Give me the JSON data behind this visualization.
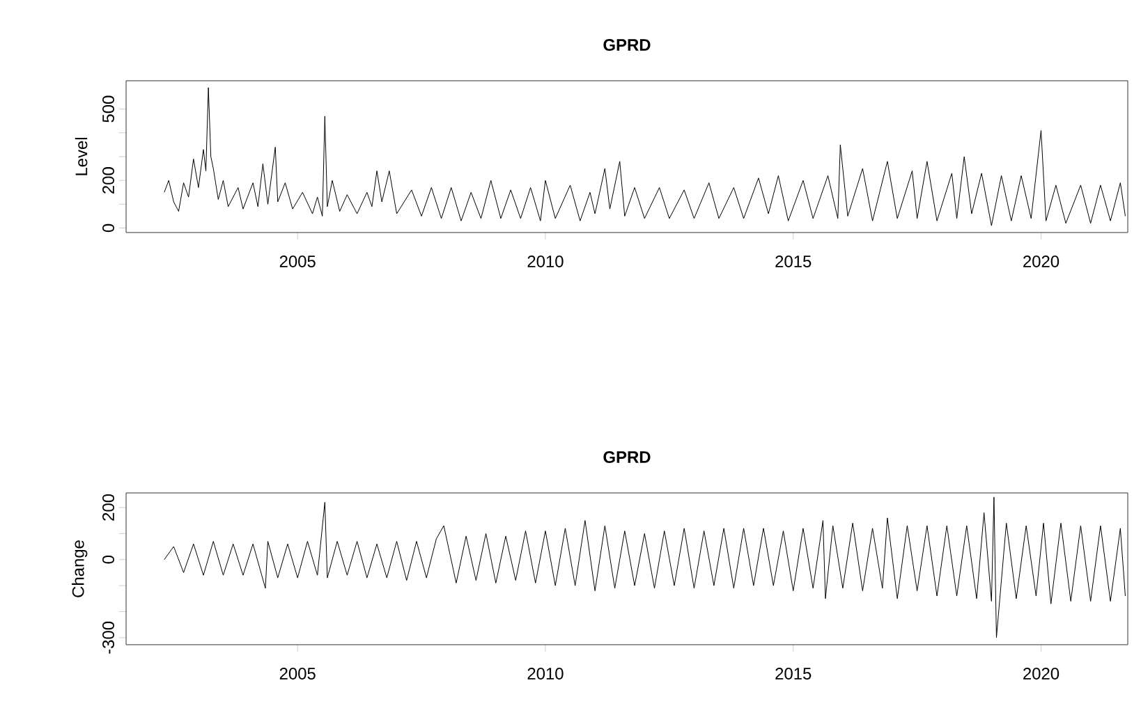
{
  "chart_data": [
    {
      "type": "line",
      "title": "GPRD",
      "ylabel": "Level",
      "xlim": [
        2001.54,
        2021.75
      ],
      "xticks": [
        2005,
        2010,
        2015,
        2020
      ],
      "ylim": [
        -19,
        619
      ],
      "yticks": [
        0,
        {
          "value": 100,
          "label": null
        },
        200,
        {
          "value": 300,
          "label": null
        },
        {
          "value": 400,
          "label": null
        },
        500
      ],
      "series": [
        {
          "color": "#000000",
          "x": [
            2002.31,
            2002.4,
            2002.5,
            2002.6,
            2002.7,
            2002.8,
            2002.9,
            2003.0,
            2003.1,
            2003.15,
            2003.2,
            2003.25,
            2003.3,
            2003.4,
            2003.5,
            2003.6,
            2003.8,
            2003.9,
            2004.1,
            2004.2,
            2004.3,
            2004.4,
            2004.55,
            2004.6,
            2004.75,
            2004.9,
            2005.1,
            2005.3,
            2005.4,
            2005.5,
            2005.55,
            2005.6,
            2005.7,
            2005.85,
            2006.0,
            2006.2,
            2006.4,
            2006.5,
            2006.6,
            2006.7,
            2006.85,
            2007.0,
            2007.3,
            2007.5,
            2007.7,
            2007.9,
            2008.1,
            2008.3,
            2008.5,
            2008.7,
            2008.9,
            2009.1,
            2009.3,
            2009.5,
            2009.7,
            2009.9,
            2010.0,
            2010.2,
            2010.5,
            2010.7,
            2010.9,
            2011.0,
            2011.2,
            2011.3,
            2011.5,
            2011.6,
            2011.8,
            2012.0,
            2012.3,
            2012.5,
            2012.8,
            2013.0,
            2013.3,
            2013.5,
            2013.8,
            2014.0,
            2014.3,
            2014.5,
            2014.7,
            2014.9,
            2015.2,
            2015.4,
            2015.7,
            2015.9,
            2015.95,
            2016.1,
            2016.4,
            2016.6,
            2016.9,
            2017.1,
            2017.4,
            2017.5,
            2017.7,
            2017.9,
            2018.2,
            2018.3,
            2018.45,
            2018.6,
            2018.8,
            2019.0,
            2019.2,
            2019.4,
            2019.6,
            2019.8,
            2020.0,
            2020.1,
            2020.3,
            2020.5,
            2020.8,
            2021.0,
            2021.2,
            2021.4,
            2021.6,
            2021.7
          ],
          "values": [
            150,
            200,
            110,
            70,
            190,
            130,
            290,
            170,
            330,
            240,
            590,
            300,
            250,
            120,
            200,
            90,
            170,
            80,
            190,
            90,
            270,
            100,
            340,
            110,
            190,
            80,
            150,
            60,
            130,
            50,
            470,
            90,
            200,
            70,
            140,
            60,
            150,
            90,
            240,
            110,
            240,
            60,
            160,
            50,
            170,
            40,
            170,
            30,
            150,
            40,
            200,
            40,
            160,
            40,
            170,
            30,
            200,
            40,
            180,
            30,
            150,
            60,
            250,
            80,
            280,
            50,
            170,
            40,
            170,
            40,
            160,
            40,
            190,
            40,
            170,
            40,
            210,
            60,
            220,
            30,
            200,
            40,
            220,
            40,
            350,
            50,
            250,
            30,
            280,
            40,
            240,
            40,
            280,
            30,
            230,
            40,
            300,
            60,
            230,
            10,
            220,
            30,
            220,
            40,
            410,
            30,
            180,
            20,
            180,
            20,
            180,
            30,
            190,
            50
          ]
        }
      ]
    },
    {
      "type": "line",
      "title": "GPRD",
      "ylabel": "Change",
      "xlim": [
        2001.54,
        2021.75
      ],
      "xticks": [
        2005,
        2010,
        2015,
        2020
      ],
      "ylim": [
        -327,
        256
      ],
      "yticks": [
        {
          "value": -300,
          "label": "-300"
        },
        {
          "value": -200,
          "label": null
        },
        {
          "value": -100,
          "label": null
        },
        0,
        {
          "value": 100,
          "label": null
        },
        200
      ],
      "series": [
        {
          "color": "#000000",
          "x": [
            2002.31,
            2002.5,
            2002.7,
            2002.9,
            2003.1,
            2003.3,
            2003.5,
            2003.7,
            2003.9,
            2004.1,
            2004.35,
            2004.4,
            2004.6,
            2004.8,
            2005.0,
            2005.2,
            2005.4,
            2005.55,
            2005.6,
            2005.8,
            2006.0,
            2006.2,
            2006.4,
            2006.6,
            2006.8,
            2007.0,
            2007.2,
            2007.4,
            2007.6,
            2007.8,
            2007.95,
            2008.2,
            2008.4,
            2008.6,
            2008.8,
            2009.0,
            2009.2,
            2009.4,
            2009.6,
            2009.8,
            2010.0,
            2010.2,
            2010.4,
            2010.6,
            2010.8,
            2011.0,
            2011.2,
            2011.4,
            2011.6,
            2011.8,
            2012.0,
            2012.2,
            2012.4,
            2012.6,
            2012.8,
            2013.0,
            2013.2,
            2013.4,
            2013.6,
            2013.8,
            2014.0,
            2014.2,
            2014.4,
            2014.6,
            2014.8,
            2015.0,
            2015.2,
            2015.4,
            2015.6,
            2015.65,
            2015.8,
            2016.0,
            2016.2,
            2016.4,
            2016.6,
            2016.8,
            2016.9,
            2017.1,
            2017.3,
            2017.5,
            2017.7,
            2017.9,
            2018.1,
            2018.3,
            2018.5,
            2018.7,
            2018.85,
            2019.0,
            2019.05,
            2019.1,
            2019.3,
            2019.5,
            2019.7,
            2019.9,
            2020.05,
            2020.2,
            2020.4,
            2020.6,
            2020.8,
            2021.0,
            2021.2,
            2021.4,
            2021.6,
            2021.7
          ],
          "values": [
            0,
            50,
            -50,
            60,
            -60,
            70,
            -60,
            60,
            -60,
            60,
            -110,
            70,
            -70,
            60,
            -70,
            70,
            -60,
            220,
            -70,
            70,
            -60,
            70,
            -70,
            60,
            -70,
            70,
            -80,
            70,
            -70,
            80,
            130,
            -90,
            90,
            -80,
            100,
            -90,
            90,
            -80,
            110,
            -90,
            110,
            -100,
            120,
            -100,
            150,
            -120,
            130,
            -110,
            110,
            -100,
            100,
            -110,
            110,
            -100,
            120,
            -110,
            110,
            -100,
            120,
            -110,
            120,
            -100,
            120,
            -100,
            110,
            -120,
            120,
            -110,
            150,
            -150,
            130,
            -110,
            140,
            -120,
            120,
            -110,
            160,
            -150,
            130,
            -120,
            130,
            -140,
            130,
            -140,
            130,
            -150,
            180,
            -160,
            240,
            -300,
            140,
            -150,
            130,
            -140,
            140,
            -170,
            140,
            -160,
            130,
            -160,
            130,
            -160,
            120,
            -140
          ]
        }
      ]
    }
  ]
}
